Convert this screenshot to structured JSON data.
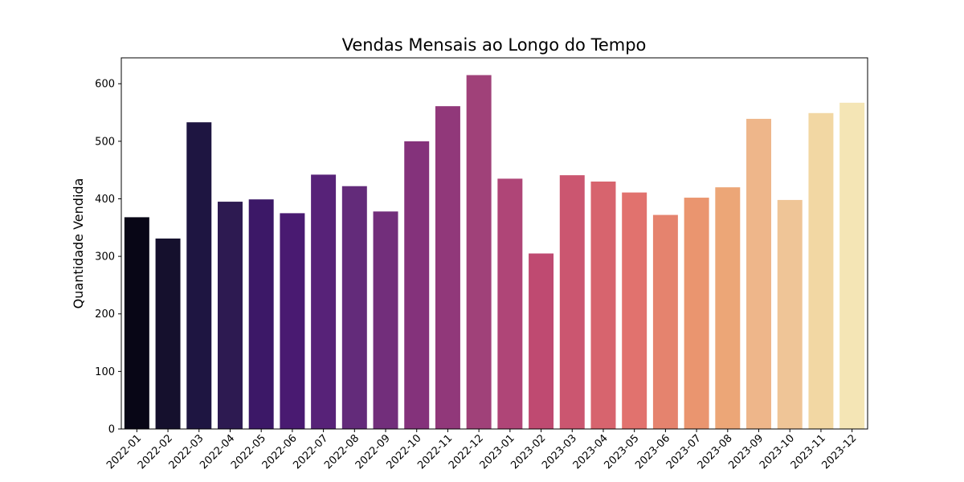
{
  "chart_data": {
    "type": "bar",
    "title": "Vendas Mensais ao Longo do Tempo",
    "xlabel": "",
    "ylabel": "Quantidade Vendida",
    "ylim": [
      0,
      645
    ],
    "yticks": [
      0,
      100,
      200,
      300,
      400,
      500,
      600
    ],
    "grid": false,
    "legend": "none",
    "categories": [
      "2022-01",
      "2022-02",
      "2022-03",
      "2022-04",
      "2022-05",
      "2022-06",
      "2022-07",
      "2022-08",
      "2022-09",
      "2022-10",
      "2022-11",
      "2022-12",
      "2023-01",
      "2023-02",
      "2023-03",
      "2023-04",
      "2023-05",
      "2023-06",
      "2023-07",
      "2023-08",
      "2023-09",
      "2023-10",
      "2023-11",
      "2023-12"
    ],
    "values": [
      368,
      331,
      533,
      395,
      399,
      375,
      442,
      422,
      378,
      500,
      561,
      615,
      435,
      305,
      441,
      430,
      411,
      372,
      402,
      420,
      539,
      398,
      549,
      567
    ],
    "colors": [
      "#080616",
      "#15102d",
      "#1e1541",
      "#2d1a51",
      "#3c1867",
      "#491a71",
      "#572278",
      "#632b7a",
      "#722e7b",
      "#84327b",
      "#91387a",
      "#a04179",
      "#af4577",
      "#bf4a71",
      "#cb5670",
      "#d7646e",
      "#e1726e",
      "#e5836e",
      "#ea956f",
      "#eca677",
      "#eeb68a",
      "#efc597",
      "#f2d7a3",
      "#f4e5b5"
    ]
  }
}
